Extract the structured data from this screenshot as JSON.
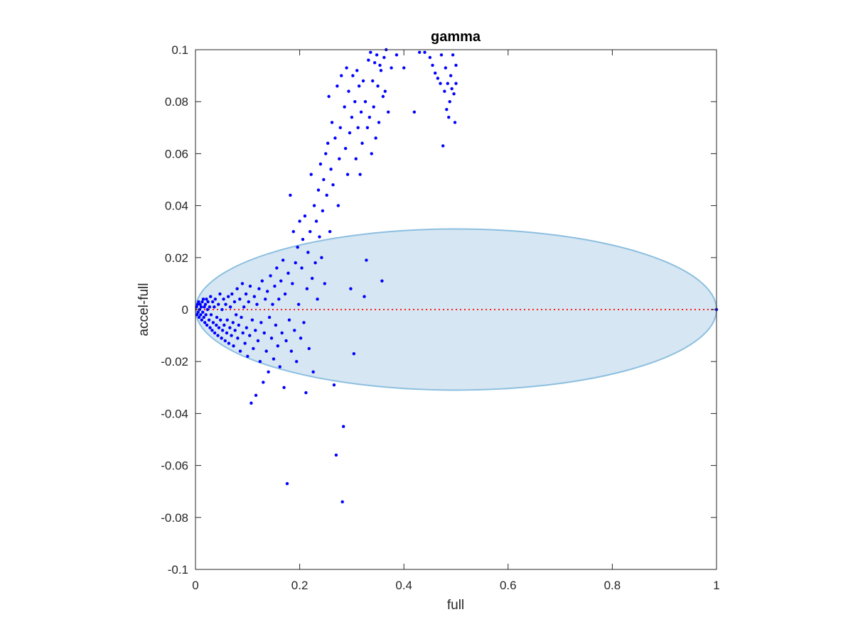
{
  "chart_data": {
    "type": "scatter",
    "title": "gamma",
    "xlabel": "full",
    "ylabel": "accel-full",
    "xlim": [
      0,
      1
    ],
    "ylim": [
      -0.1,
      0.1
    ],
    "xticks": [
      0,
      0.2,
      0.4,
      0.6,
      0.8,
      1
    ],
    "xtick_labels": [
      "0",
      "0.2",
      "0.4",
      "0.6",
      "0.8",
      "1"
    ],
    "yticks": [
      -0.1,
      -0.08,
      -0.06,
      -0.04,
      -0.02,
      0,
      0.02,
      0.04,
      0.06,
      0.08,
      0.1
    ],
    "ytick_labels": [
      "-0.1",
      "-0.08",
      "-0.06",
      "-0.04",
      "-0.02",
      "0",
      "0.02",
      "0.04",
      "0.06",
      "0.08",
      "0.1"
    ],
    "grid": false,
    "ellipse": {
      "center": [
        0.5,
        0
      ],
      "x_radius": 0.5,
      "y_radius": 0.031,
      "fill": "#d6e6f2",
      "stroke": "#8cbfe0"
    },
    "reference_line": {
      "y": 0,
      "x_range": [
        0,
        1
      ],
      "color": "#ff2020",
      "style": "dotted"
    },
    "point_color": "#0000ff",
    "points": [
      [
        0.002,
        0.001
      ],
      [
        0.003,
        -0.002
      ],
      [
        0.004,
        0.002
      ],
      [
        0.005,
        -0.001
      ],
      [
        0.006,
        0.003
      ],
      [
        0.007,
        -0.003
      ],
      [
        0.008,
        0.0
      ],
      [
        0.009,
        0.002
      ],
      [
        0.01,
        -0.002
      ],
      [
        0.011,
        0.001
      ],
      [
        0.012,
        -0.004
      ],
      [
        0.013,
        0.003
      ],
      [
        0.014,
        -0.001
      ],
      [
        0.015,
        0.004
      ],
      [
        0.016,
        -0.003
      ],
      [
        0.017,
        0.001
      ],
      [
        0.018,
        -0.005
      ],
      [
        0.019,
        0.002
      ],
      [
        0.02,
        -0.002
      ],
      [
        0.021,
        0.004
      ],
      [
        0.022,
        -0.006
      ],
      [
        0.023,
        0.0
      ],
      [
        0.024,
        0.003
      ],
      [
        0.026,
        -0.004
      ],
      [
        0.027,
        0.001
      ],
      [
        0.028,
        -0.007
      ],
      [
        0.029,
        0.005
      ],
      [
        0.03,
        -0.002
      ],
      [
        0.032,
        -0.008
      ],
      [
        0.033,
        0.003
      ],
      [
        0.034,
        -0.005
      ],
      [
        0.036,
        0.001
      ],
      [
        0.037,
        -0.009
      ],
      [
        0.038,
        0.004
      ],
      [
        0.04,
        -0.006
      ],
      [
        0.041,
        -0.003
      ],
      [
        0.043,
        -0.01
      ],
      [
        0.044,
        0.002
      ],
      [
        0.045,
        -0.007
      ],
      [
        0.047,
        0.006
      ],
      [
        0.048,
        -0.004
      ],
      [
        0.05,
        -0.011
      ],
      [
        0.051,
        0.0
      ],
      [
        0.052,
        -0.008
      ],
      [
        0.054,
        0.004
      ],
      [
        0.055,
        -0.006
      ],
      [
        0.057,
        -0.012
      ],
      [
        0.058,
        0.002
      ],
      [
        0.06,
        -0.009
      ],
      [
        0.061,
        -0.004
      ],
      [
        0.063,
        0.005
      ],
      [
        0.064,
        -0.013
      ],
      [
        0.066,
        -0.007
      ],
      [
        0.067,
        0.001
      ],
      [
        0.069,
        -0.01
      ],
      [
        0.07,
        0.006
      ],
      [
        0.072,
        -0.005
      ],
      [
        0.073,
        -0.014
      ],
      [
        0.075,
        0.003
      ],
      [
        0.076,
        -0.008
      ],
      [
        0.078,
        -0.002
      ],
      [
        0.08,
        0.008
      ],
      [
        0.081,
        -0.011
      ],
      [
        0.083,
        -0.006
      ],
      [
        0.085,
        0.004
      ],
      [
        0.086,
        -0.016
      ],
      [
        0.088,
        -0.003
      ],
      [
        0.09,
        0.01
      ],
      [
        0.091,
        -0.009
      ],
      [
        0.093,
        0.001
      ],
      [
        0.095,
        -0.013
      ],
      [
        0.097,
        0.006
      ],
      [
        0.098,
        -0.007
      ],
      [
        0.1,
        -0.018
      ],
      [
        0.102,
        0.003
      ],
      [
        0.104,
        -0.01
      ],
      [
        0.105,
        0.009
      ],
      [
        0.107,
        -0.036
      ],
      [
        0.109,
        -0.004
      ],
      [
        0.111,
        -0.015
      ],
      [
        0.113,
        0.005
      ],
      [
        0.115,
        -0.008
      ],
      [
        0.116,
        -0.033
      ],
      [
        0.118,
        0.002
      ],
      [
        0.12,
        -0.012
      ],
      [
        0.122,
        0.008
      ],
      [
        0.124,
        -0.02
      ],
      [
        0.126,
        -0.005
      ],
      [
        0.128,
        0.011
      ],
      [
        0.13,
        -0.028
      ],
      [
        0.132,
        -0.009
      ],
      [
        0.134,
        0.004
      ],
      [
        0.136,
        -0.016
      ],
      [
        0.138,
        0.007
      ],
      [
        0.14,
        -0.024
      ],
      [
        0.142,
        -0.003
      ],
      [
        0.144,
        0.013
      ],
      [
        0.146,
        -0.011
      ],
      [
        0.148,
        0.002
      ],
      [
        0.15,
        -0.019
      ],
      [
        0.152,
        0.009
      ],
      [
        0.154,
        -0.006
      ],
      [
        0.156,
        0.016
      ],
      [
        0.158,
        -0.014
      ],
      [
        0.16,
        0.004
      ],
      [
        0.162,
        -0.022
      ],
      [
        0.164,
        0.011
      ],
      [
        0.166,
        -0.009
      ],
      [
        0.168,
        0.019
      ],
      [
        0.17,
        -0.03
      ],
      [
        0.172,
        0.006
      ],
      [
        0.174,
        -0.012
      ],
      [
        0.176,
        -0.067
      ],
      [
        0.178,
        0.014
      ],
      [
        0.18,
        -0.004
      ],
      [
        0.182,
        0.044
      ],
      [
        0.184,
        -0.016
      ],
      [
        0.186,
        0.01
      ],
      [
        0.188,
        0.03
      ],
      [
        0.19,
        -0.008
      ],
      [
        0.192,
        0.018
      ],
      [
        0.194,
        -0.02
      ],
      [
        0.196,
        0.024
      ],
      [
        0.198,
        0.002
      ],
      [
        0.2,
        0.034
      ],
      [
        0.202,
        -0.011
      ],
      [
        0.204,
        0.016
      ],
      [
        0.206,
        0.027
      ],
      [
        0.208,
        -0.005
      ],
      [
        0.21,
        0.036
      ],
      [
        0.212,
        -0.032
      ],
      [
        0.214,
        0.008
      ],
      [
        0.216,
        0.022
      ],
      [
        0.218,
        -0.015
      ],
      [
        0.22,
        0.03
      ],
      [
        0.222,
        0.052
      ],
      [
        0.224,
        0.012
      ],
      [
        0.226,
        -0.024
      ],
      [
        0.228,
        0.04
      ],
      [
        0.23,
        0.018
      ],
      [
        0.232,
        0.034
      ],
      [
        0.234,
        0.004
      ],
      [
        0.236,
        0.046
      ],
      [
        0.238,
        0.028
      ],
      [
        0.24,
        0.056
      ],
      [
        0.242,
        0.02
      ],
      [
        0.244,
        0.038
      ],
      [
        0.246,
        0.05
      ],
      [
        0.248,
        0.01
      ],
      [
        0.25,
        0.06
      ],
      [
        0.252,
        0.044
      ],
      [
        0.254,
        0.064
      ],
      [
        0.256,
        0.082
      ],
      [
        0.258,
        0.03
      ],
      [
        0.26,
        0.054
      ],
      [
        0.262,
        0.072
      ],
      [
        0.264,
        0.048
      ],
      [
        0.266,
        -0.029
      ],
      [
        0.268,
        0.066
      ],
      [
        0.27,
        -0.056
      ],
      [
        0.272,
        0.086
      ],
      [
        0.274,
        0.04
      ],
      [
        0.276,
        0.058
      ],
      [
        0.278,
        0.07
      ],
      [
        0.28,
        0.09
      ],
      [
        0.282,
        -0.074
      ],
      [
        0.284,
        -0.045
      ],
      [
        0.286,
        0.078
      ],
      [
        0.288,
        0.062
      ],
      [
        0.29,
        0.093
      ],
      [
        0.292,
        0.052
      ],
      [
        0.294,
        0.084
      ],
      [
        0.296,
        0.068
      ],
      [
        0.298,
        0.008
      ],
      [
        0.3,
        0.074
      ],
      [
        0.302,
        0.09
      ],
      [
        0.304,
        -0.017
      ],
      [
        0.306,
        0.08
      ],
      [
        0.308,
        0.058
      ],
      [
        0.31,
        0.092
      ],
      [
        0.312,
        0.07
      ],
      [
        0.314,
        0.086
      ],
      [
        0.316,
        0.052
      ],
      [
        0.318,
        0.076
      ],
      [
        0.32,
        0.064
      ],
      [
        0.322,
        0.088
      ],
      [
        0.324,
        0.005
      ],
      [
        0.326,
        0.08
      ],
      [
        0.328,
        0.019
      ],
      [
        0.33,
        0.07
      ],
      [
        0.332,
        0.096
      ],
      [
        0.334,
        0.074
      ],
      [
        0.336,
        0.099
      ],
      [
        0.338,
        0.06
      ],
      [
        0.34,
        0.088
      ],
      [
        0.342,
        0.078
      ],
      [
        0.344,
        0.095
      ],
      [
        0.346,
        0.066
      ],
      [
        0.348,
        0.098
      ],
      [
        0.35,
        0.086
      ],
      [
        0.352,
        0.072
      ],
      [
        0.354,
        0.094
      ],
      [
        0.356,
        0.092
      ],
      [
        0.358,
        0.011
      ],
      [
        0.36,
        0.082
      ],
      [
        0.362,
        0.097
      ],
      [
        0.364,
        0.084
      ],
      [
        0.366,
        0.1
      ],
      [
        0.37,
        0.076
      ],
      [
        0.376,
        0.093
      ],
      [
        0.386,
        0.098
      ],
      [
        0.4,
        0.093
      ],
      [
        0.42,
        0.076
      ],
      [
        0.43,
        0.099
      ],
      [
        0.44,
        0.099
      ],
      [
        0.45,
        0.097
      ],
      [
        0.455,
        0.094
      ],
      [
        0.46,
        0.091
      ],
      [
        0.465,
        0.089
      ],
      [
        0.47,
        0.087
      ],
      [
        0.472,
        0.098
      ],
      [
        0.475,
        0.063
      ],
      [
        0.478,
        0.084
      ],
      [
        0.48,
        0.093
      ],
      [
        0.482,
        0.077
      ],
      [
        0.484,
        0.087
      ],
      [
        0.486,
        0.074
      ],
      [
        0.488,
        0.08
      ],
      [
        0.49,
        0.09
      ],
      [
        0.492,
        0.085
      ],
      [
        0.494,
        0.098
      ],
      [
        0.496,
        0.083
      ],
      [
        0.498,
        0.072
      ],
      [
        0.5,
        0.087
      ],
      [
        0.5,
        0.094
      ],
      [
        1.0,
        0.0
      ]
    ]
  }
}
